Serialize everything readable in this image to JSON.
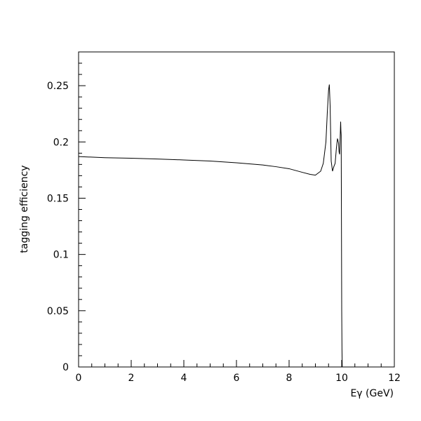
{
  "chart_data": {
    "type": "line",
    "title": "",
    "xlabel": "Eγ (GeV)",
    "ylabel": "tagging efficiency",
    "xlim": [
      0,
      12
    ],
    "ylim": [
      0,
      0.28
    ],
    "x_ticks": [
      0,
      2,
      4,
      6,
      8,
      10,
      12
    ],
    "x_tick_labels": [
      "0",
      "2",
      "4",
      "6",
      "8",
      "10",
      "12"
    ],
    "y_ticks": [
      0,
      0.05,
      0.1,
      0.15,
      0.2,
      0.25
    ],
    "y_tick_labels": [
      "0",
      "0.05",
      "0.1",
      "0.15",
      "0.2",
      "0.25"
    ],
    "grid": false,
    "legend": "none",
    "series": [
      {
        "color": "#000000",
        "x": [
          0,
          1,
          2,
          3,
          4,
          5,
          6,
          7,
          7.5,
          8,
          8.5,
          8.8,
          9.0,
          9.2,
          9.3,
          9.4,
          9.45,
          9.5,
          9.53,
          9.56,
          9.6,
          9.65,
          9.7,
          9.75,
          9.8,
          9.84,
          9.88,
          9.9,
          9.92,
          9.94,
          9.96,
          9.97,
          9.98,
          9.99,
          10.0,
          10.01,
          10.02
        ],
        "y": [
          0.187,
          0.186,
          0.1855,
          0.1848,
          0.184,
          0.183,
          0.1815,
          0.1795,
          0.178,
          0.1762,
          0.173,
          0.1712,
          0.1705,
          0.174,
          0.181,
          0.2,
          0.225,
          0.246,
          0.251,
          0.232,
          0.183,
          0.174,
          0.178,
          0.181,
          0.195,
          0.203,
          0.199,
          0.191,
          0.189,
          0.203,
          0.218,
          0.21,
          0.206,
          0.13,
          0.05,
          0.015,
          0.0
        ]
      }
    ]
  }
}
